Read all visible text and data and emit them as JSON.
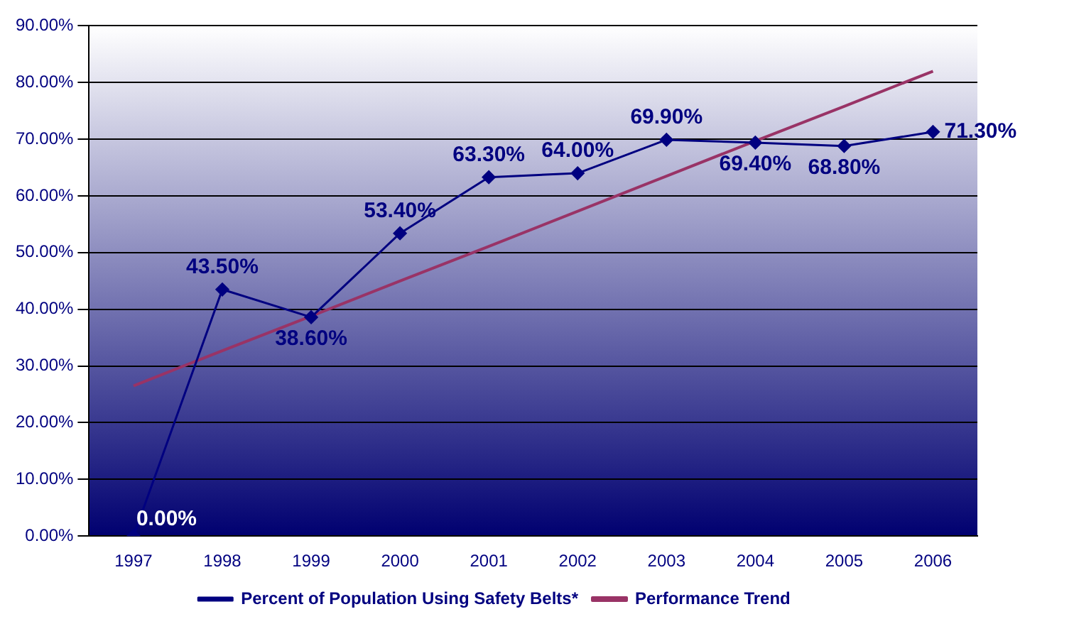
{
  "chart_data": {
    "type": "line",
    "categories": [
      "1997",
      "1998",
      "1999",
      "2000",
      "2001",
      "2002",
      "2003",
      "2004",
      "2005",
      "2006"
    ],
    "series": [
      {
        "name": "Percent of Population Using Safety Belts*",
        "color": "#000080",
        "values": [
          0,
          43.5,
          38.6,
          53.4,
          63.3,
          64.0,
          69.9,
          69.4,
          68.8,
          71.3
        ],
        "value_labels": [
          "0.00%",
          "43.50%",
          "38.60%",
          "53.40%",
          "63.30%",
          "64.00%",
          "69.90%",
          "69.40%",
          "68.80%",
          "71.30%"
        ],
        "marker": "diamond"
      },
      {
        "name": "Performance Trend",
        "color": "#993366",
        "values": [
          26.5,
          32.7,
          38.8,
          45.0,
          51.1,
          57.3,
          63.5,
          69.7,
          75.8,
          82.0
        ],
        "marker": "none"
      }
    ],
    "ylim": [
      0,
      90
    ],
    "yticks": [
      {
        "value": 0,
        "label": "0.00%"
      },
      {
        "value": 10,
        "label": "10.00%"
      },
      {
        "value": 20,
        "label": "20.00%"
      },
      {
        "value": 30,
        "label": "30.00%"
      },
      {
        "value": 40,
        "label": "40.00%"
      },
      {
        "value": 50,
        "label": "50.00%"
      },
      {
        "value": 60,
        "label": "60.00%"
      },
      {
        "value": 70,
        "label": "70.00%"
      },
      {
        "value": 80,
        "label": "80.00%"
      },
      {
        "value": 90,
        "label": "90.00%"
      }
    ],
    "grid": "y",
    "legend": "bottom"
  }
}
